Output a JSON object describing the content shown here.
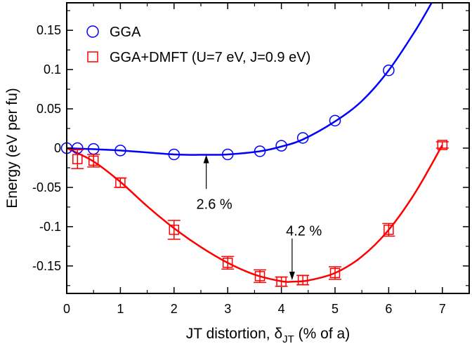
{
  "chart_data": {
    "type": "scatter",
    "xlabel_main": "JT distortion, δ",
    "xlabel_sub": "JT",
    "xlabel_tail": " (% of a)",
    "ylabel": "Energy (eV per fu)",
    "xlim": [
      0,
      7.5
    ],
    "ylim": [
      -0.185,
      0.185
    ],
    "xticks": [
      0,
      1,
      2,
      3,
      4,
      5,
      6,
      7
    ],
    "yticks": [
      -0.15,
      -0.1,
      -0.05,
      0,
      0.05,
      0.1,
      0.15
    ],
    "xtick_labels": [
      "0",
      "1",
      "2",
      "3",
      "4",
      "5",
      "6",
      "7"
    ],
    "ytick_labels": [
      "-0.15",
      "-0.1",
      "-0.05",
      "0",
      "0.05",
      "0.1",
      "0.15"
    ],
    "grid": false,
    "legend_position": "top-left",
    "series": [
      {
        "name": "GGA",
        "marker": "circle",
        "color": "#0000ff",
        "x": [
          0,
          0.2,
          0.5,
          1,
          2,
          3,
          3.6,
          4,
          4.4,
          5,
          6
        ],
        "y": [
          0,
          0,
          -0.001,
          -0.003,
          -0.008,
          -0.008,
          -0.004,
          0.003,
          0.013,
          0.035,
          0.099
        ],
        "fit": [
          [
            0,
            0
          ],
          [
            1,
            -0.003
          ],
          [
            2,
            -0.008
          ],
          [
            2.6,
            -0.0085
          ],
          [
            3,
            -0.008
          ],
          [
            3.6,
            -0.004
          ],
          [
            4,
            0.002
          ],
          [
            4.4,
            0.011
          ],
          [
            5,
            0.034
          ],
          [
            5.5,
            0.06
          ],
          [
            6,
            0.099
          ],
          [
            6.5,
            0.15
          ],
          [
            6.8,
            0.185
          ]
        ]
      },
      {
        "name": "GGA+DMFT (U=7 eV, J=0.9 eV)",
        "marker": "square",
        "color": "#ff0000",
        "x": [
          0.2,
          0.5,
          1,
          2,
          3,
          3.6,
          4,
          4.4,
          5,
          6,
          7
        ],
        "y": [
          -0.014,
          -0.016,
          -0.044,
          -0.104,
          -0.146,
          -0.163,
          -0.17,
          -0.168,
          -0.159,
          -0.104,
          0.004
        ],
        "err": [
          0.012,
          0.008,
          0.006,
          0.012,
          0.008,
          0.008,
          0.006,
          0.006,
          0.008,
          0.008,
          0.004
        ],
        "fit": [
          [
            0,
            0
          ],
          [
            0.5,
            -0.017
          ],
          [
            1,
            -0.043
          ],
          [
            1.5,
            -0.074
          ],
          [
            2,
            -0.102
          ],
          [
            2.5,
            -0.126
          ],
          [
            3,
            -0.146
          ],
          [
            3.5,
            -0.161
          ],
          [
            4,
            -0.1695
          ],
          [
            4.2,
            -0.17
          ],
          [
            4.5,
            -0.1685
          ],
          [
            5,
            -0.159
          ],
          [
            5.5,
            -0.138
          ],
          [
            6,
            -0.104
          ],
          [
            6.5,
            -0.056
          ],
          [
            7,
            0.004
          ]
        ]
      }
    ],
    "annotations": [
      {
        "text": "2.6 %",
        "arrow_x": 2.6,
        "arrow_tip_y": -0.0085,
        "arrow_tail_y": -0.052,
        "label_x": 2.75,
        "label_y": -0.071
      },
      {
        "text": "4.2 %",
        "arrow_x": 4.2,
        "arrow_tip_y": -0.168,
        "arrow_tail_y": -0.115,
        "label_x": 4.42,
        "label_y": -0.105
      }
    ]
  }
}
